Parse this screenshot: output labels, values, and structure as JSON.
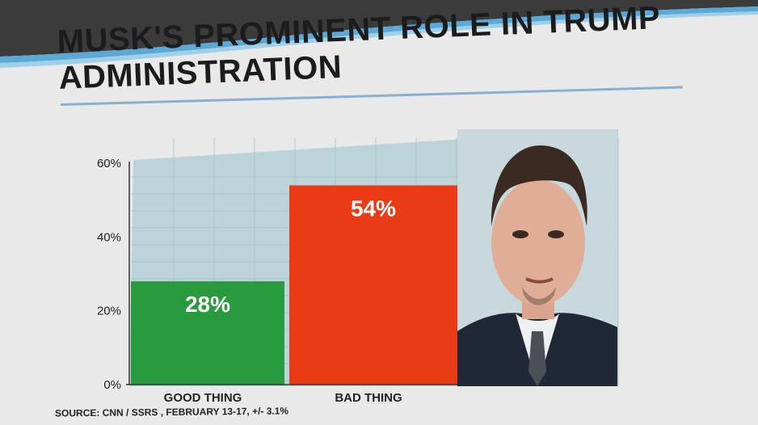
{
  "colors": {
    "good": "#2a9a3e",
    "bad": "#ea3b17",
    "panel": "#bcd4d9",
    "grid": "#8fb7c6",
    "header": "#5aa9d6"
  },
  "chart_data": {
    "type": "bar",
    "title": "MUSK'S PROMINENT ROLE IN TRUMP ADMINISTRATION",
    "categories": [
      "GOOD THING",
      "BAD THING"
    ],
    "values": [
      28,
      54
    ],
    "value_labels": [
      "28%",
      "54%"
    ],
    "ylim": [
      0,
      60
    ],
    "yticks": [
      "0%",
      "20%",
      "40%",
      "60%"
    ],
    "ytick_values": [
      0,
      20,
      40,
      60
    ],
    "grid": true,
    "source": "SOURCE: CNN / SSRS , FEBRUARY 13-17, +/- 3.1%"
  }
}
